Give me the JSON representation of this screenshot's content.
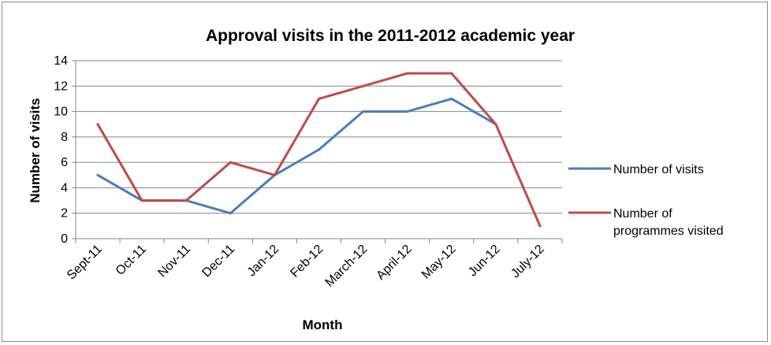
{
  "chart_data": {
    "type": "line",
    "title": "Approval visits in the 2011-2012 academic year",
    "xlabel": "Month",
    "ylabel": "Number of visits",
    "categories": [
      "Sept-11",
      "Oct-11",
      "Nov-11",
      "Dec-11",
      "Jan-12",
      "Feb-12",
      "March-12",
      "April-12",
      "May-12",
      "Jun-12",
      "July-12"
    ],
    "ylim": [
      0,
      14
    ],
    "yticks": [
      0,
      2,
      4,
      6,
      8,
      10,
      12,
      14
    ],
    "grid": "horizontal",
    "legend_position": "right",
    "series": [
      {
        "name": "Number of visits",
        "color": "#4a7ebb",
        "values": [
          5,
          3,
          3,
          2,
          5,
          7,
          10,
          10,
          11,
          9,
          null
        ]
      },
      {
        "name": "Number of programmes visited",
        "name_lines": [
          "Number of",
          "programmes visited"
        ],
        "color": "#be4b48",
        "values": [
          9,
          3,
          3,
          6,
          5,
          11,
          12,
          13,
          13,
          9,
          1
        ]
      }
    ]
  }
}
